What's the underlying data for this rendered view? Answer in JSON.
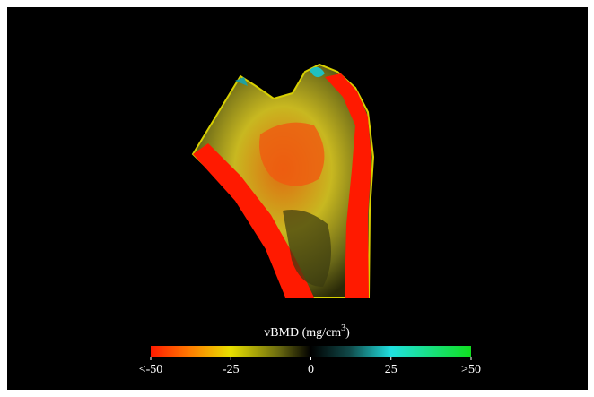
{
  "colorbar": {
    "label": {
      "text": "vBMD (mg/cm",
      "superscript": "3",
      "suffix": ")"
    },
    "range": [
      -50,
      50
    ],
    "ticks": [
      {
        "value": -50,
        "label": "<-50"
      },
      -25,
      0,
      25,
      {
        "value": 50,
        "label": ">50"
      }
    ]
  }
}
